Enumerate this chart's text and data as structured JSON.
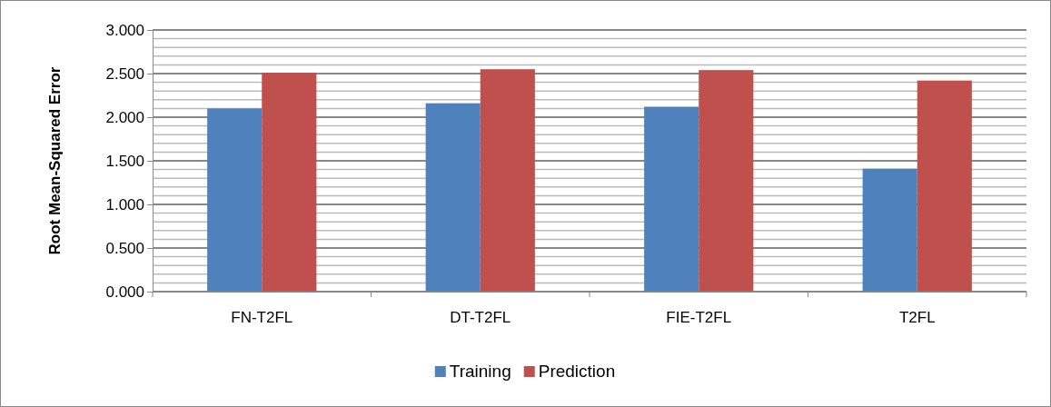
{
  "chart_data": {
    "type": "bar",
    "ylabel": "Root Mean-Squared Error",
    "categories": [
      "FN-T2FL",
      "DT-T2FL",
      "FIE-T2FL",
      "T2FL"
    ],
    "series": [
      {
        "name": "Training",
        "color": "#4f81bd",
        "values": [
          2.1,
          2.16,
          2.12,
          1.41
        ]
      },
      {
        "name": "Prediction",
        "color": "#c0504d",
        "values": [
          2.51,
          2.55,
          2.54,
          2.42
        ]
      }
    ],
    "ylim": [
      0,
      3
    ],
    "yticks": [
      {
        "value": 0,
        "label": "0.000"
      },
      {
        "value": 0.1,
        "label": null
      },
      {
        "value": 0.2,
        "label": null
      },
      {
        "value": 0.3,
        "label": null
      },
      {
        "value": 0.4,
        "label": null
      },
      {
        "value": 0.5,
        "label": "0.500"
      },
      {
        "value": 0.6,
        "label": null
      },
      {
        "value": 0.7,
        "label": null
      },
      {
        "value": 0.8,
        "label": null
      },
      {
        "value": 0.9,
        "label": null
      },
      {
        "value": 1,
        "label": "1.000"
      },
      {
        "value": 1.1,
        "label": null
      },
      {
        "value": 1.2,
        "label": null
      },
      {
        "value": 1.3,
        "label": null
      },
      {
        "value": 1.4,
        "label": null
      },
      {
        "value": 1.5,
        "label": "1.500"
      },
      {
        "value": 1.6,
        "label": null
      },
      {
        "value": 1.7,
        "label": null
      },
      {
        "value": 1.8,
        "label": null
      },
      {
        "value": 1.9,
        "label": null
      },
      {
        "value": 2,
        "label": "2.000"
      },
      {
        "value": 2.1,
        "label": null
      },
      {
        "value": 2.2,
        "label": null
      },
      {
        "value": 2.3,
        "label": null
      },
      {
        "value": 2.4,
        "label": null
      },
      {
        "value": 2.5,
        "label": "2.500"
      },
      {
        "value": 2.6,
        "label": null
      },
      {
        "value": 2.7,
        "label": null
      },
      {
        "value": 2.8,
        "label": null
      },
      {
        "value": 2.9,
        "label": null
      },
      {
        "value": 3,
        "label": "3.000"
      }
    ],
    "grid": "y",
    "legend": "bottom"
  }
}
